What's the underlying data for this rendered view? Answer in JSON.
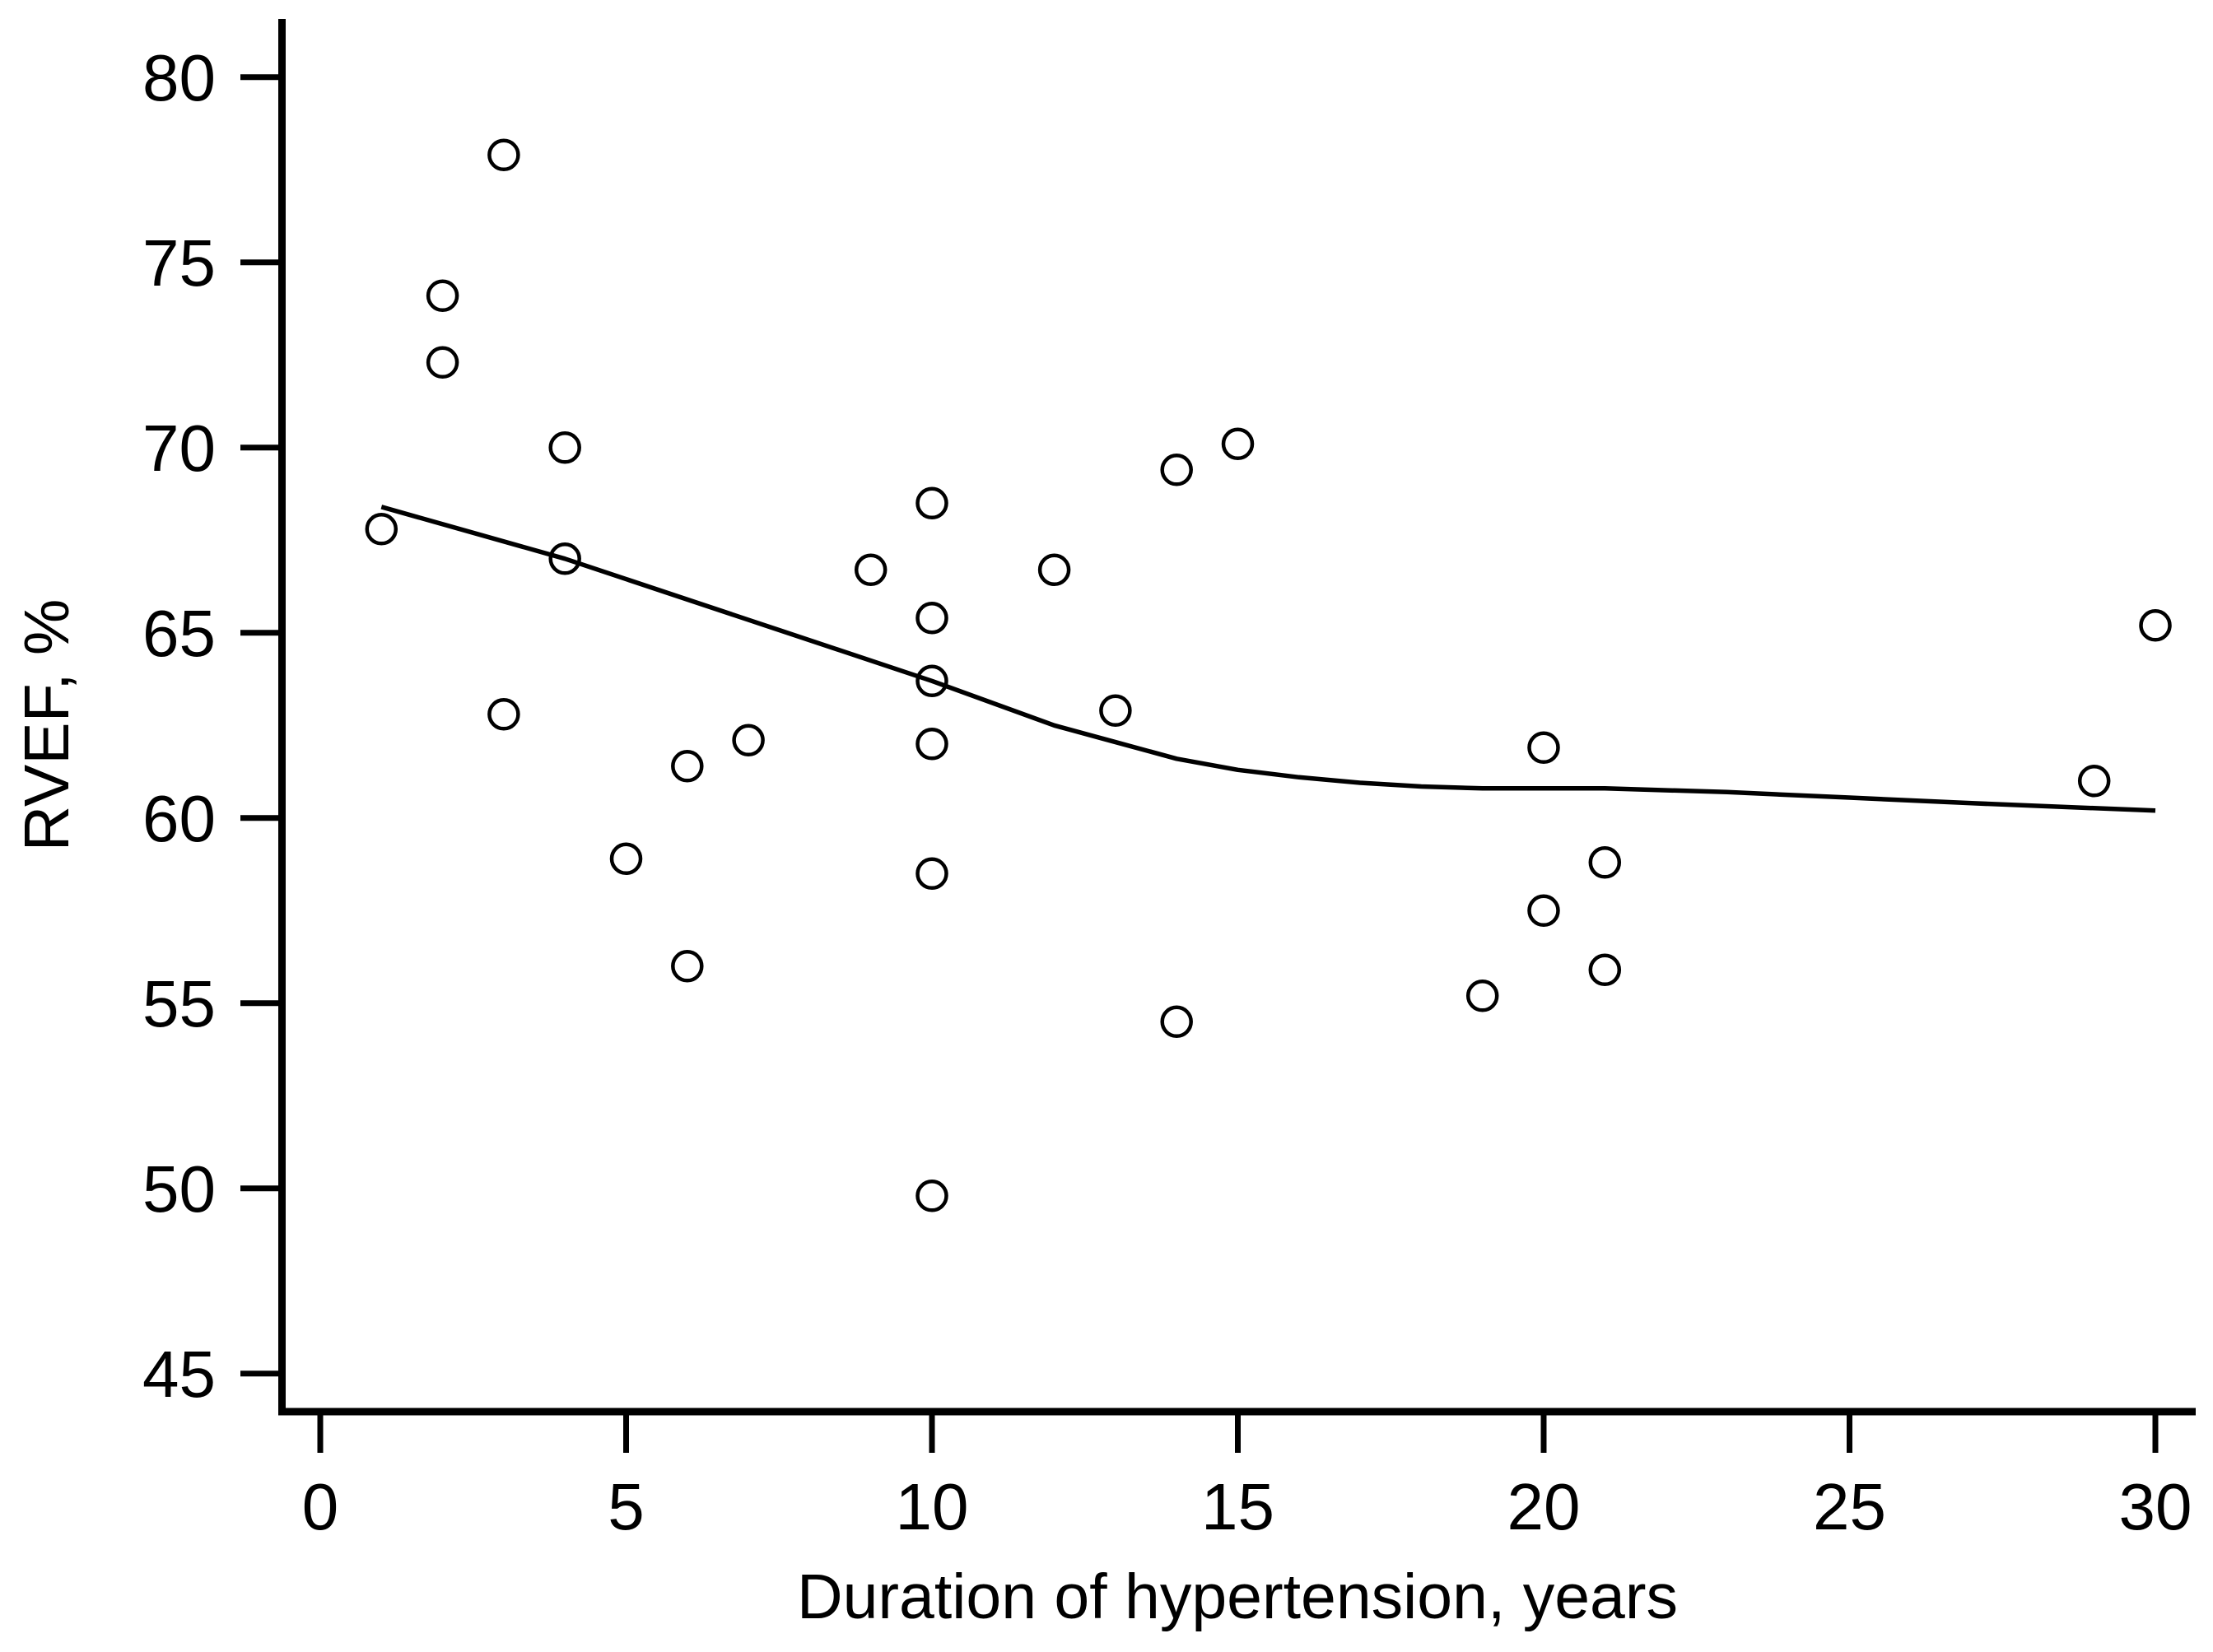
{
  "page": {
    "background": "#ffffff"
  },
  "chart_data": {
    "type": "scatter",
    "title": "",
    "xlabel": "Duration of hypertension, years",
    "ylabel": "RVEF, %",
    "x_ticks": [
      0,
      5,
      10,
      15,
      20,
      25,
      30
    ],
    "y_ticks": [
      45,
      50,
      55,
      60,
      65,
      70,
      75,
      80
    ],
    "xlim": [
      -0.7,
      30.7
    ],
    "ylim": [
      44.0,
      81.6
    ],
    "grid": false,
    "legend": "none",
    "marker": "open-circle",
    "colors": {
      "ink": "#000000",
      "background": "#ffffff"
    },
    "points": [
      [
        1,
        67.8
      ],
      [
        2,
        74.1
      ],
      [
        2,
        72.3
      ],
      [
        3,
        77.9
      ],
      [
        3,
        62.8
      ],
      [
        4,
        70.0
      ],
      [
        4,
        67.0
      ],
      [
        5,
        58.9
      ],
      [
        6,
        61.4
      ],
      [
        6,
        56.0
      ],
      [
        7,
        62.1
      ],
      [
        9,
        66.7
      ],
      [
        10,
        68.5
      ],
      [
        10,
        65.4
      ],
      [
        10,
        63.7
      ],
      [
        10,
        62.0
      ],
      [
        10,
        58.5
      ],
      [
        10,
        49.8
      ],
      [
        12,
        66.7
      ],
      [
        13,
        62.9
      ],
      [
        14,
        69.4
      ],
      [
        14,
        54.5
      ],
      [
        15,
        70.1
      ],
      [
        19,
        55.2
      ],
      [
        20,
        61.9
      ],
      [
        20,
        57.5
      ],
      [
        21,
        58.8
      ],
      [
        21,
        55.9
      ],
      [
        29,
        61.0
      ],
      [
        30,
        65.2
      ]
    ],
    "trend_line": {
      "label": "lowess-smoother",
      "points": [
        [
          1,
          68.4
        ],
        [
          4,
          67.0
        ],
        [
          7,
          65.35
        ],
        [
          10,
          63.7
        ],
        [
          12,
          62.5
        ],
        [
          13,
          62.05
        ],
        [
          14,
          61.6
        ],
        [
          15,
          61.3
        ],
        [
          16,
          61.1
        ],
        [
          17,
          60.95
        ],
        [
          18,
          60.85
        ],
        [
          19,
          60.8
        ],
        [
          21,
          60.8
        ],
        [
          23,
          60.7
        ],
        [
          25,
          60.55
        ],
        [
          27,
          60.4
        ],
        [
          30,
          60.2
        ]
      ]
    }
  }
}
